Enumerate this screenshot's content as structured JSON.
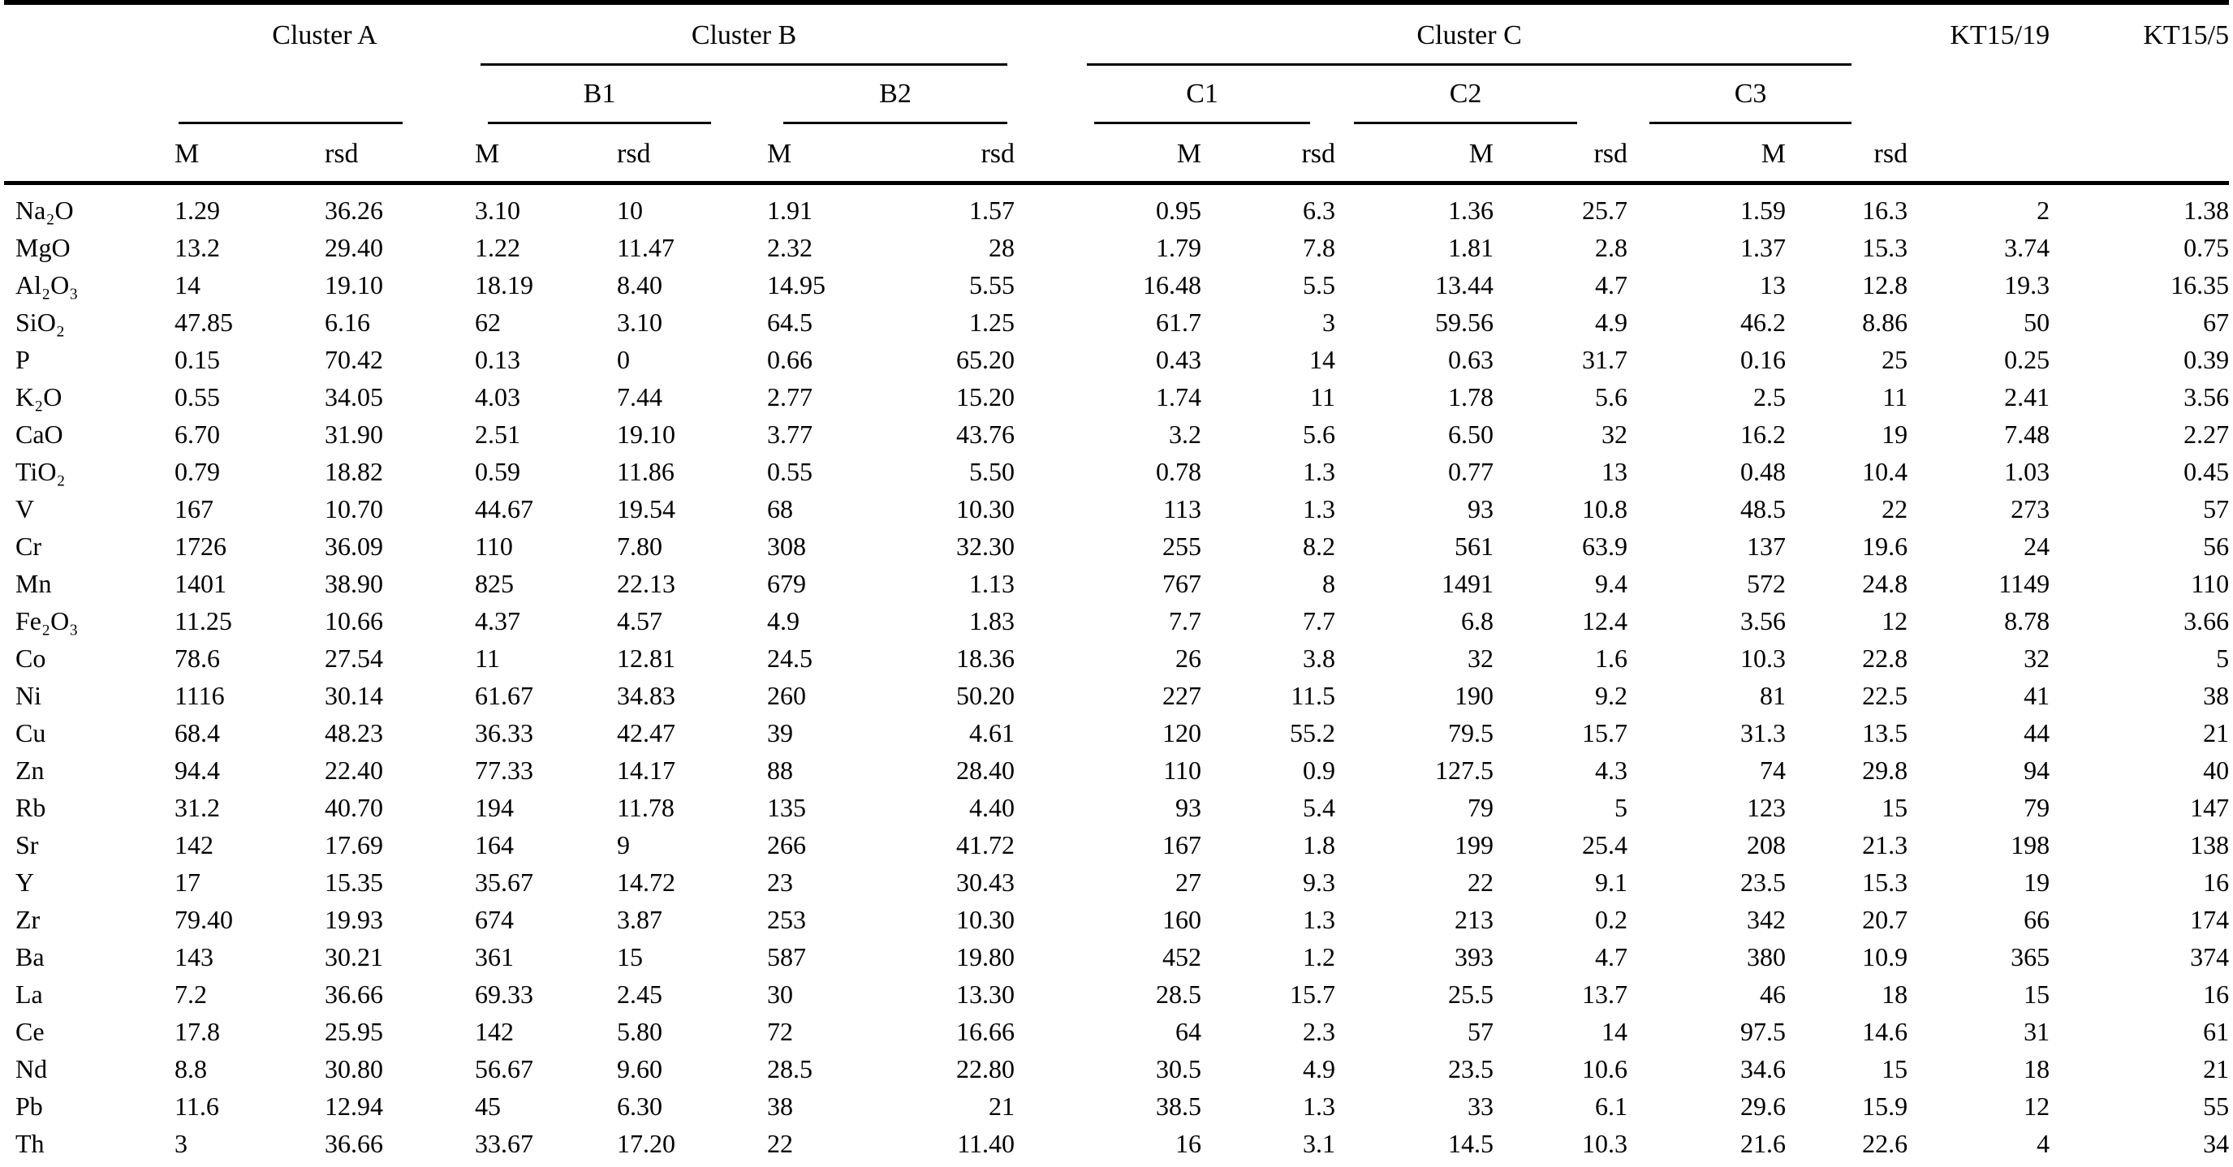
{
  "colors": {
    "background": "#ffffff",
    "text": "#000000",
    "rule": "#000000"
  },
  "table": {
    "group_headers": [
      "Cluster A",
      "Cluster B",
      "Cluster C"
    ],
    "sub_group_headers": [
      "B1",
      "B2",
      "C1",
      "C2",
      "C3"
    ],
    "value_headers": [
      "M",
      "rsd"
    ],
    "sample_headers": [
      "KT15/19",
      "KT15/5"
    ],
    "rows": [
      {
        "element": "Na₂O",
        "values": [
          "1.29",
          "36.26",
          "3.10",
          "10",
          "1.91",
          "1.57",
          "0.95",
          "6.3",
          "1.36",
          "25.7",
          "1.59",
          "16.3",
          "2",
          "1.38"
        ]
      },
      {
        "element": "MgO",
        "values": [
          "13.2",
          "29.40",
          "1.22",
          "11.47",
          "2.32",
          "28",
          "1.79",
          "7.8",
          "1.81",
          "2.8",
          "1.37",
          "15.3",
          "3.74",
          "0.75"
        ]
      },
      {
        "element": "Al₂O₃",
        "values": [
          "14",
          "19.10",
          "18.19",
          "8.40",
          "14.95",
          "5.55",
          "16.48",
          "5.5",
          "13.44",
          "4.7",
          "13",
          "12.8",
          "19.3",
          "16.35"
        ]
      },
      {
        "element": "SiO₂",
        "values": [
          "47.85",
          "6.16",
          "62",
          "3.10",
          "64.5",
          "1.25",
          "61.7",
          "3",
          "59.56",
          "4.9",
          "46.2",
          "8.86",
          "50",
          "67"
        ]
      },
      {
        "element": "P",
        "values": [
          "0.15",
          "70.42",
          "0.13",
          "0",
          "0.66",
          "65.20",
          "0.43",
          "14",
          "0.63",
          "31.7",
          "0.16",
          "25",
          "0.25",
          "0.39"
        ]
      },
      {
        "element": "K₂O",
        "values": [
          "0.55",
          "34.05",
          "4.03",
          "7.44",
          "2.77",
          "15.20",
          "1.74",
          "11",
          "1.78",
          "5.6",
          "2.5",
          "11",
          "2.41",
          "3.56"
        ]
      },
      {
        "element": "CaO",
        "values": [
          "6.70",
          "31.90",
          "2.51",
          "19.10",
          "3.77",
          "43.76",
          "3.2",
          "5.6",
          "6.50",
          "32",
          "16.2",
          "19",
          "7.48",
          "2.27"
        ]
      },
      {
        "element": "TiO₂",
        "values": [
          "0.79",
          "18.82",
          "0.59",
          "11.86",
          "0.55",
          "5.50",
          "0.78",
          "1.3",
          "0.77",
          "13",
          "0.48",
          "10.4",
          "1.03",
          "0.45"
        ]
      },
      {
        "element": "V",
        "values": [
          "167",
          "10.70",
          "44.67",
          "19.54",
          "68",
          "10.30",
          "113",
          "1.3",
          "93",
          "10.8",
          "48.5",
          "22",
          "273",
          "57"
        ]
      },
      {
        "element": "Cr",
        "values": [
          "1726",
          "36.09",
          "110",
          "7.80",
          "308",
          "32.30",
          "255",
          "8.2",
          "561",
          "63.9",
          "137",
          "19.6",
          "24",
          "56"
        ]
      },
      {
        "element": "Mn",
        "values": [
          "1401",
          "38.90",
          "825",
          "22.13",
          "679",
          "1.13",
          "767",
          "8",
          "1491",
          "9.4",
          "572",
          "24.8",
          "1149",
          "110"
        ]
      },
      {
        "element": "Fe₂O₃",
        "values": [
          "11.25",
          "10.66",
          "4.37",
          "4.57",
          "4.9",
          "1.83",
          "7.7",
          "7.7",
          "6.8",
          "12.4",
          "3.56",
          "12",
          "8.78",
          "3.66"
        ]
      },
      {
        "element": "Co",
        "values": [
          "78.6",
          "27.54",
          "11",
          "12.81",
          "24.5",
          "18.36",
          "26",
          "3.8",
          "32",
          "1.6",
          "10.3",
          "22.8",
          "32",
          "5"
        ]
      },
      {
        "element": "Ni",
        "values": [
          "1116",
          "30.14",
          "61.67",
          "34.83",
          "260",
          "50.20",
          "227",
          "11.5",
          "190",
          "9.2",
          "81",
          "22.5",
          "41",
          "38"
        ]
      },
      {
        "element": "Cu",
        "values": [
          "68.4",
          "48.23",
          "36.33",
          "42.47",
          "39",
          "4.61",
          "120",
          "55.2",
          "79.5",
          "15.7",
          "31.3",
          "13.5",
          "44",
          "21"
        ]
      },
      {
        "element": "Zn",
        "values": [
          "94.4",
          "22.40",
          "77.33",
          "14.17",
          "88",
          "28.40",
          "110",
          "0.9",
          "127.5",
          "4.3",
          "74",
          "29.8",
          "94",
          "40"
        ]
      },
      {
        "element": "Rb",
        "values": [
          "31.2",
          "40.70",
          "194",
          "11.78",
          "135",
          "4.40",
          "93",
          "5.4",
          "79",
          "5",
          "123",
          "15",
          "79",
          "147"
        ]
      },
      {
        "element": "Sr",
        "values": [
          "142",
          "17.69",
          "164",
          "9",
          "266",
          "41.72",
          "167",
          "1.8",
          "199",
          "25.4",
          "208",
          "21.3",
          "198",
          "138"
        ]
      },
      {
        "element": "Y",
        "values": [
          "17",
          "15.35",
          "35.67",
          "14.72",
          "23",
          "30.43",
          "27",
          "9.3",
          "22",
          "9.1",
          "23.5",
          "15.3",
          "19",
          "16"
        ]
      },
      {
        "element": "Zr",
        "values": [
          "79.40",
          "19.93",
          "674",
          "3.87",
          "253",
          "10.30",
          "160",
          "1.3",
          "213",
          "0.2",
          "342",
          "20.7",
          "66",
          "174"
        ]
      },
      {
        "element": "Ba",
        "values": [
          "143",
          "30.21",
          "361",
          "15",
          "587",
          "19.80",
          "452",
          "1.2",
          "393",
          "4.7",
          "380",
          "10.9",
          "365",
          "374"
        ]
      },
      {
        "element": "La",
        "values": [
          "7.2",
          "36.66",
          "69.33",
          "2.45",
          "30",
          "13.30",
          "28.5",
          "15.7",
          "25.5",
          "13.7",
          "46",
          "18",
          "15",
          "16"
        ]
      },
      {
        "element": "Ce",
        "values": [
          "17.8",
          "25.95",
          "142",
          "5.80",
          "72",
          "16.66",
          "64",
          "2.3",
          "57",
          "14",
          "97.5",
          "14.6",
          "31",
          "61"
        ]
      },
      {
        "element": "Nd",
        "values": [
          "8.8",
          "30.80",
          "56.67",
          "9.60",
          "28.5",
          "22.80",
          "30.5",
          "4.9",
          "23.5",
          "10.6",
          "34.6",
          "15",
          "18",
          "21"
        ]
      },
      {
        "element": "Pb",
        "values": [
          "11.6",
          "12.94",
          "45",
          "6.30",
          "38",
          "21",
          "38.5",
          "1.3",
          "33",
          "6.1",
          "29.6",
          "15.9",
          "12",
          "55"
        ]
      },
      {
        "element": "Th",
        "values": [
          "3",
          "36.66",
          "33.67",
          "17.20",
          "22",
          "11.40",
          "16",
          "3.1",
          "14.5",
          "10.3",
          "21.6",
          "22.6",
          "4",
          "34"
        ]
      }
    ]
  }
}
